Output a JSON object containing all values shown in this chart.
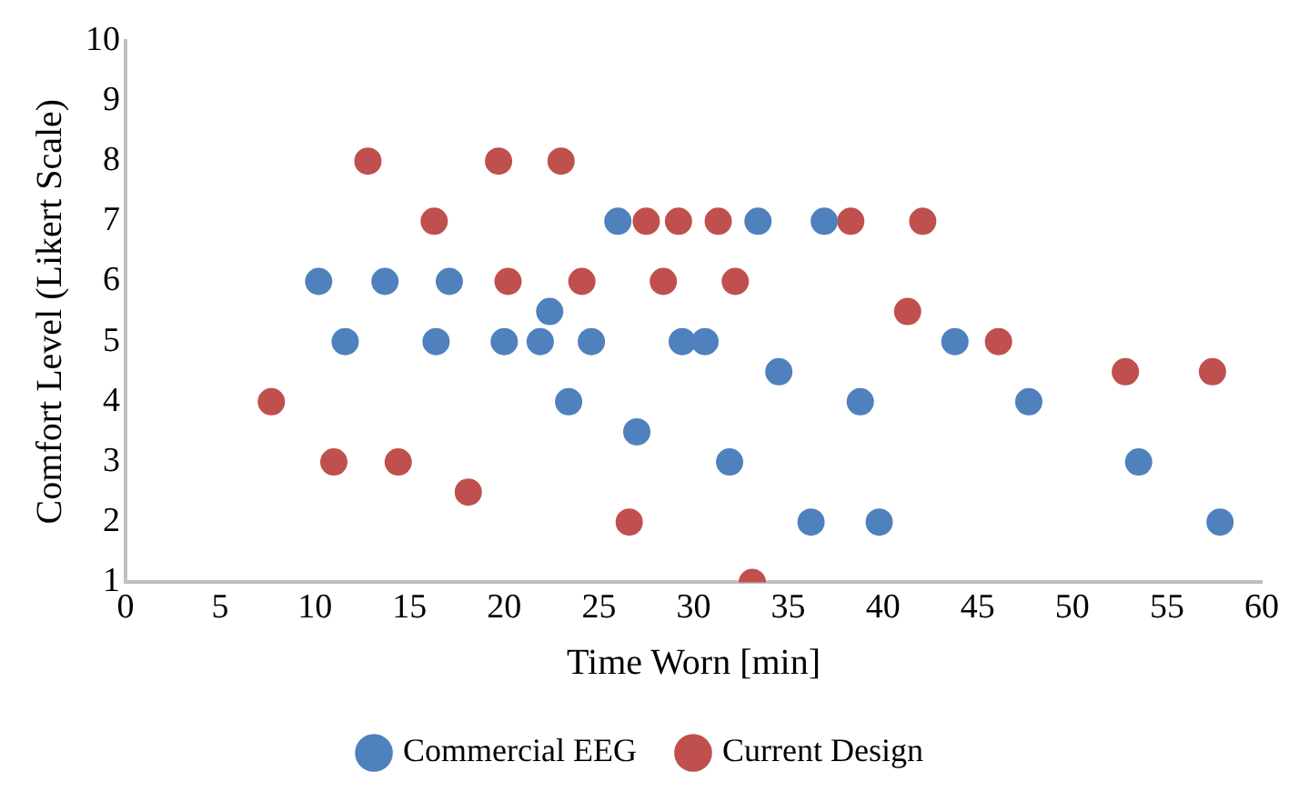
{
  "chart_data": {
    "type": "scatter",
    "xlabel": "Time Worn [min]",
    "ylabel": "Comfort Level (Likert Scale)",
    "xlim": [
      0,
      60
    ],
    "xticks": [
      0,
      5,
      10,
      15,
      20,
      25,
      30,
      35,
      40,
      45,
      50,
      55,
      60
    ],
    "ylim": [
      1,
      10
    ],
    "yticks": [
      1,
      2,
      3,
      4,
      5,
      6,
      7,
      8,
      9,
      10
    ],
    "grid": false,
    "legend": "bottom",
    "marker": "circle",
    "series": [
      {
        "name": "Commercial EEG",
        "color": "#4f81bd",
        "x": [
          10.2,
          13.7,
          17.1,
          11.6,
          16.4,
          20.0,
          21.9,
          22.4,
          24.6,
          23.4,
          26.0,
          27.0,
          29.4,
          30.6,
          31.9,
          33.4,
          34.5,
          36.2,
          36.9,
          38.8,
          39.8,
          43.8,
          47.7,
          53.5,
          57.8
        ],
        "values": [
          6,
          6,
          6,
          5,
          5,
          5,
          5,
          5.5,
          5,
          4,
          7,
          3.5,
          5,
          5,
          3,
          7,
          4.5,
          2,
          7,
          4,
          2,
          5,
          4,
          3,
          2
        ]
      },
      {
        "name": "Current Design",
        "color": "#c0504d",
        "x": [
          7.7,
          11.0,
          12.8,
          14.4,
          16.3,
          18.1,
          19.7,
          20.2,
          23.0,
          24.1,
          26.6,
          27.5,
          28.4,
          29.2,
          31.3,
          32.2,
          33.1,
          38.3,
          41.3,
          42.1,
          46.1,
          52.8,
          57.4
        ],
        "values": [
          4,
          3,
          8,
          3,
          7,
          2.5,
          8,
          6,
          8,
          6,
          2,
          7,
          6,
          7,
          7,
          6,
          1,
          7,
          5.5,
          7,
          5,
          4.5,
          4.5
        ]
      }
    ]
  }
}
